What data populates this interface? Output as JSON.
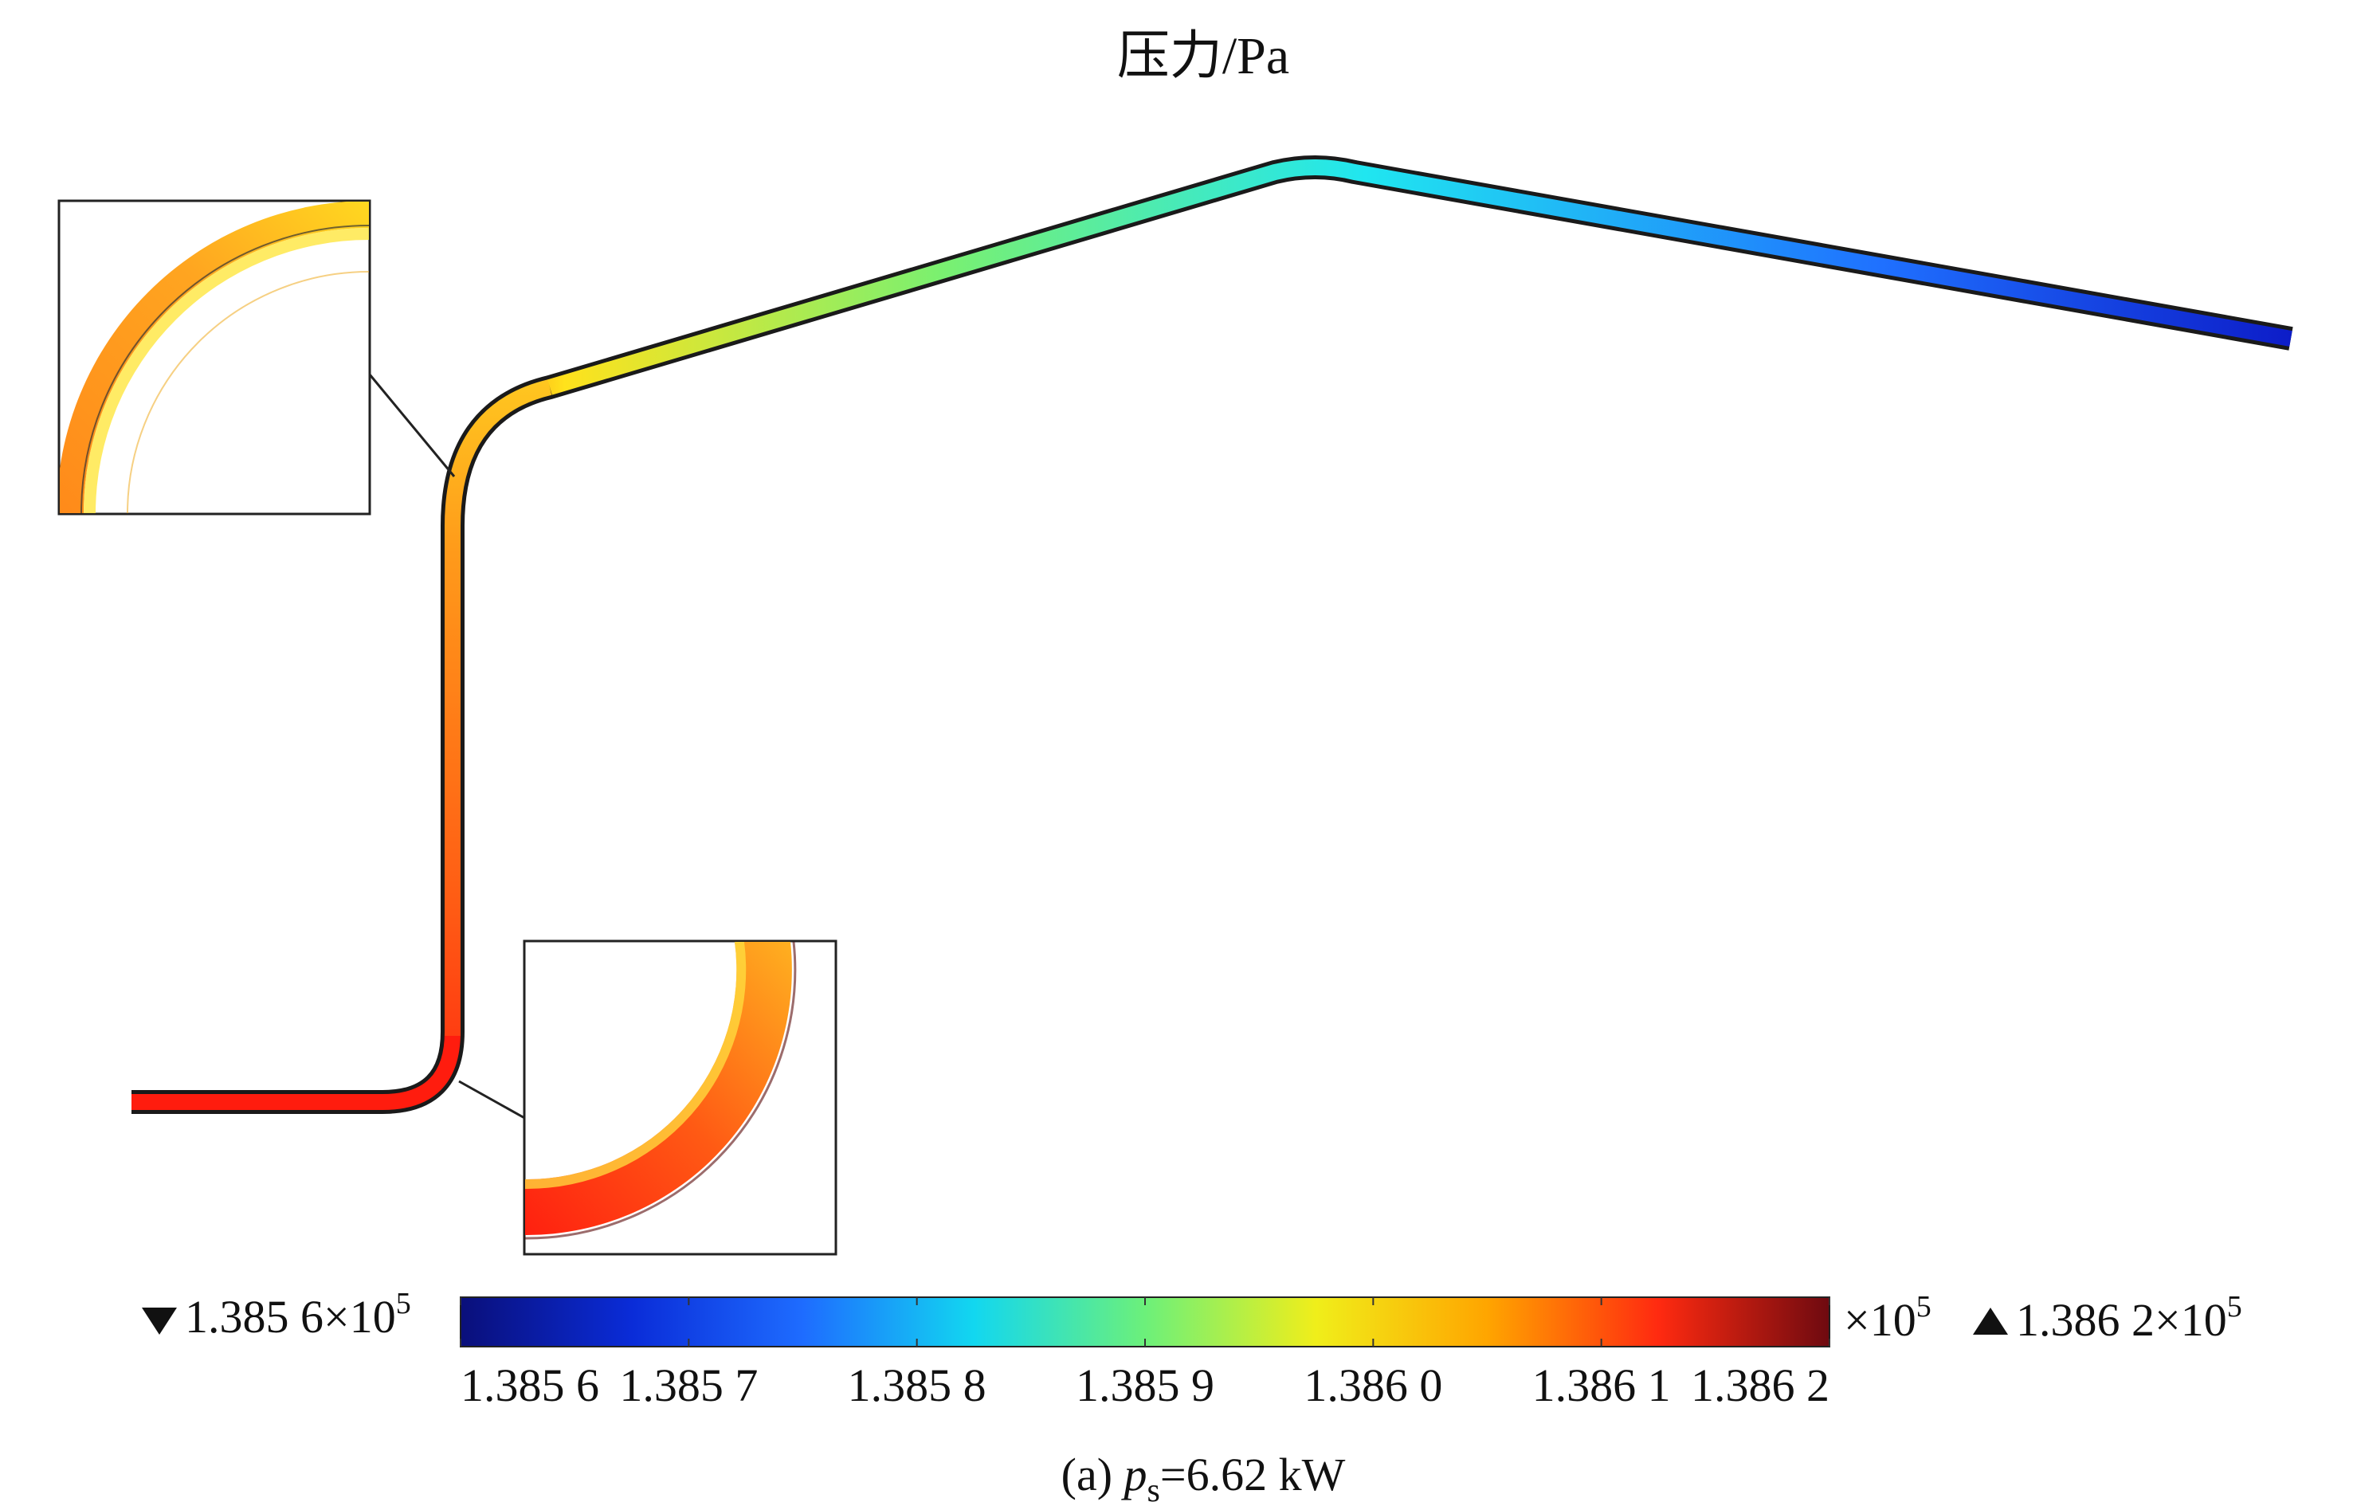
{
  "title": "压力/Pa",
  "caption": {
    "prefix": "(a) ",
    "var": "p",
    "sub": "s",
    "suffix": "=6.62 kW"
  },
  "colorbar": {
    "min_label": "1.385 6×10",
    "min_exp": "5",
    "max_label": "1.386 2×10",
    "max_exp": "5",
    "multiplier": "×10",
    "multiplier_exp": "5",
    "min_value": 138560,
    "max_value": 138620,
    "ticks": [
      {
        "label": "1.385 6",
        "value": 138560
      },
      {
        "label": "1.385 7",
        "value": 138570
      },
      {
        "label": "1.385 8",
        "value": 138580
      },
      {
        "label": "1.385 9",
        "value": 138590
      },
      {
        "label": "1.386 0",
        "value": 138600
      },
      {
        "label": "1.386 1",
        "value": 138610
      },
      {
        "label": "1.386 2",
        "value": 138620
      }
    ],
    "colors": [
      "#0a0f7a",
      "#0a2cd8",
      "#1e6cff",
      "#12d7f0",
      "#6cf07a",
      "#f0ee1a",
      "#ffa500",
      "#ff2a10",
      "#6e0a10"
    ]
  }
}
